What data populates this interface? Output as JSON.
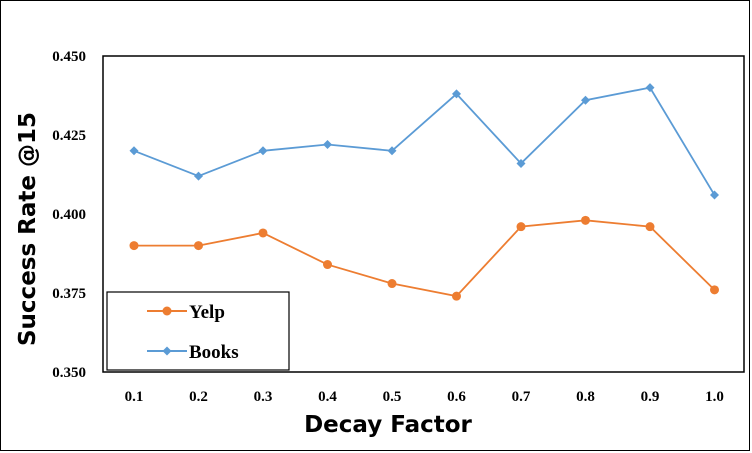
{
  "chart_data": {
    "type": "line",
    "xlabel": "Decay Factor",
    "ylabel": "Success Rate @15",
    "categories": [
      "0.1",
      "0.2",
      "0.3",
      "0.4",
      "0.5",
      "0.6",
      "0.7",
      "0.8",
      "0.9",
      "1.0"
    ],
    "ylim": [
      0.35,
      0.45
    ],
    "yticks": [
      "0.350",
      "0.375",
      "0.400",
      "0.425",
      "0.450"
    ],
    "series": [
      {
        "name": "Yelp",
        "color": "#ED7D31",
        "marker": "circle",
        "values": [
          0.39,
          0.39,
          0.394,
          0.384,
          0.378,
          0.374,
          0.396,
          0.398,
          0.396,
          0.376
        ]
      },
      {
        "name": "Books",
        "color": "#5B9BD5",
        "marker": "diamond",
        "values": [
          0.42,
          0.412,
          0.42,
          0.422,
          0.42,
          0.438,
          0.416,
          0.436,
          0.44,
          0.406
        ]
      }
    ],
    "grid": false,
    "legend_position": "bottom-left"
  }
}
